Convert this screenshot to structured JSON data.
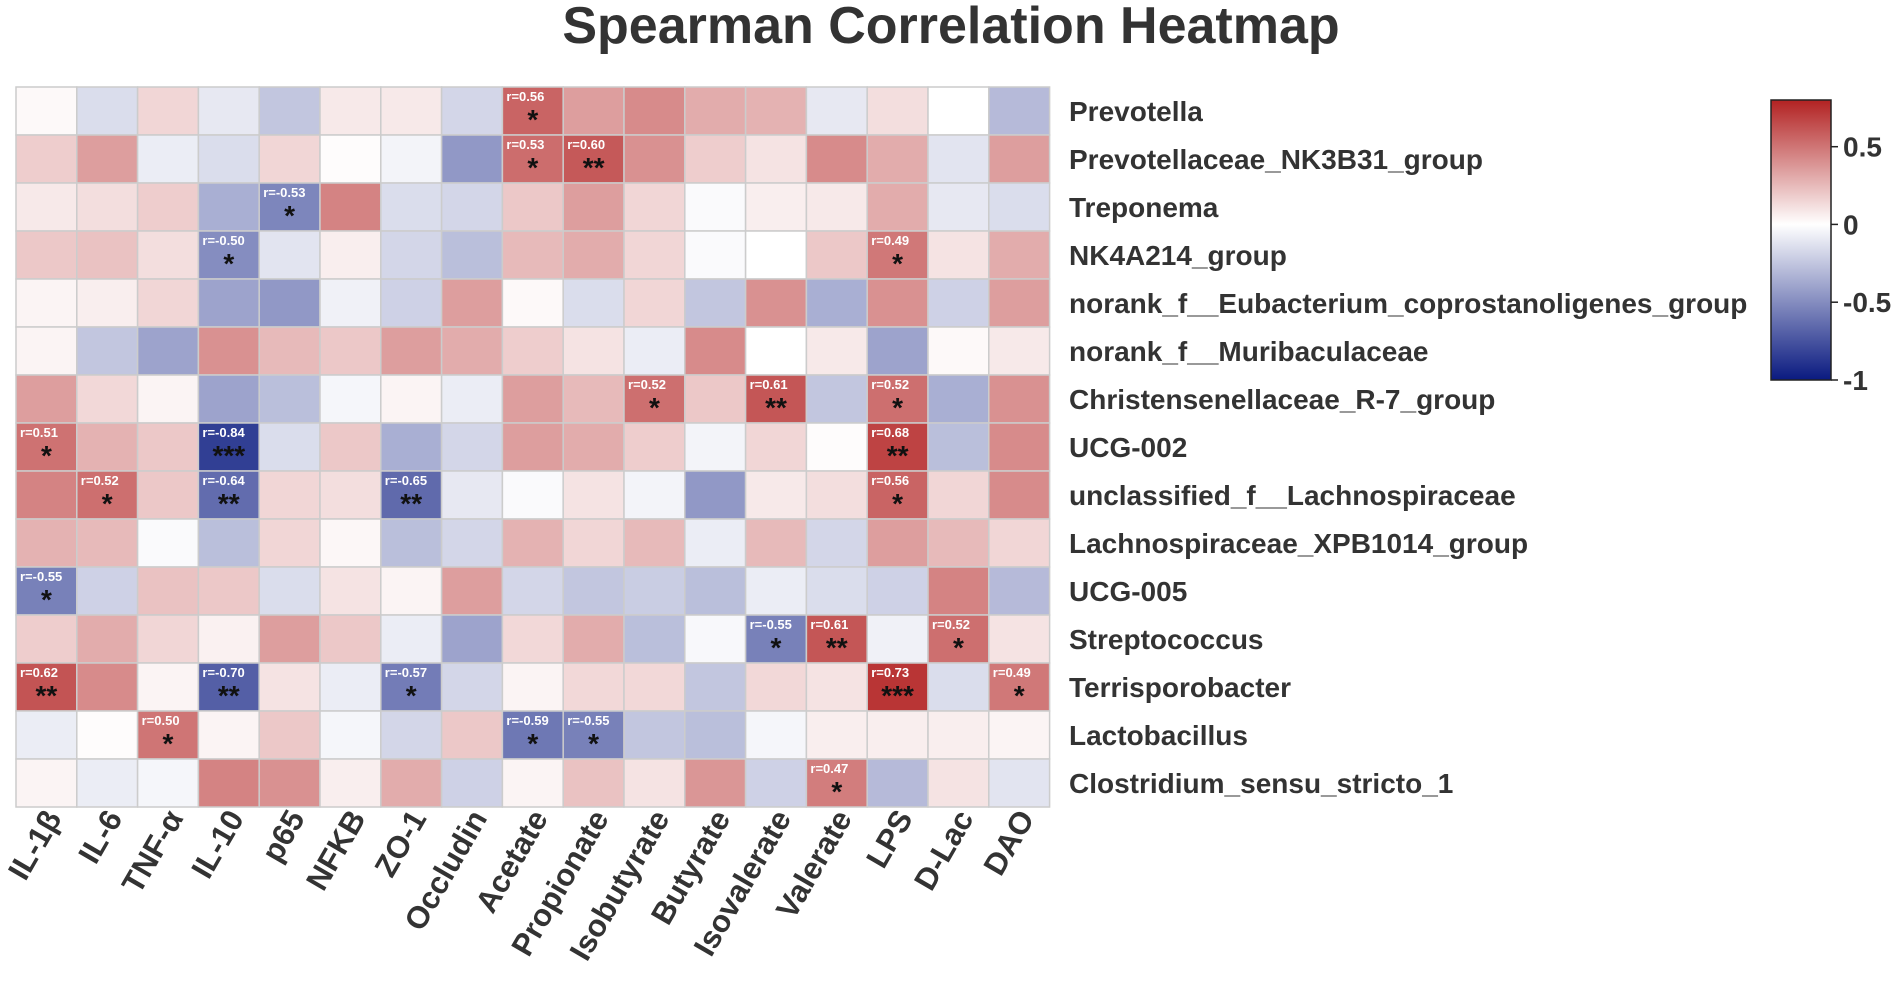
{
  "chart_data": {
    "type": "heatmap",
    "title": "Spearman Correlation Heatmap",
    "columns": [
      "IL-1β",
      "IL-6",
      "TNF-α",
      "IL-10",
      "p65",
      "NFKB",
      "ZO-1",
      "Occludin",
      "Acetate",
      "Propionate",
      "Isobutyrate",
      "Butyrate",
      "Isovalerate",
      "Valerate",
      "LPS",
      "D-Lac",
      "DAO"
    ],
    "rows": [
      "Prevotella",
      "Prevotellaceae_NK3B31_group",
      "Treponema",
      "NK4A214_group",
      "norank_f__Eubacterium_coprostanoligenes_group",
      "norank_f__Muribaculaceae",
      "Christensenellaceae_R-7_group",
      "UCG-002",
      "unclassified_f__Lachnospiraceae",
      "Lachnospiraceae_XPB1014_group",
      "UCG-005",
      "Streptococcus",
      "Terrisporobacter",
      "Lactobacillus",
      "Clostridium_sensu_stricto_1"
    ],
    "values": [
      [
        0.02,
        -0.15,
        0.15,
        -0.1,
        -0.25,
        0.08,
        0.08,
        -0.18,
        0.56,
        0.35,
        0.42,
        0.3,
        0.28,
        -0.1,
        0.12,
        0.0,
        -0.3
      ],
      [
        0.18,
        0.35,
        -0.08,
        -0.15,
        0.15,
        0.01,
        -0.05,
        -0.45,
        0.53,
        0.6,
        0.4,
        0.18,
        0.1,
        0.42,
        0.3,
        -0.12,
        0.35
      ],
      [
        0.08,
        0.12,
        0.18,
        -0.35,
        -0.53,
        0.45,
        -0.15,
        -0.18,
        0.2,
        0.35,
        0.15,
        -0.02,
        0.06,
        0.08,
        0.3,
        -0.1,
        -0.15
      ],
      [
        0.2,
        0.22,
        0.12,
        -0.5,
        -0.12,
        0.06,
        -0.18,
        -0.28,
        0.25,
        0.3,
        0.15,
        -0.02,
        0.0,
        0.2,
        0.49,
        0.1,
        0.3
      ],
      [
        0.04,
        0.06,
        0.15,
        -0.4,
        -0.45,
        -0.06,
        -0.2,
        0.35,
        0.02,
        -0.15,
        0.15,
        -0.25,
        0.4,
        -0.35,
        0.4,
        -0.2,
        0.35
      ],
      [
        0.04,
        -0.25,
        -0.4,
        0.4,
        0.25,
        0.2,
        0.35,
        0.3,
        0.18,
        0.1,
        -0.08,
        0.42,
        0.0,
        0.08,
        -0.4,
        0.02,
        0.08
      ],
      [
        0.35,
        0.14,
        0.04,
        -0.4,
        -0.28,
        -0.04,
        0.04,
        -0.08,
        0.35,
        0.25,
        0.52,
        0.2,
        0.61,
        -0.25,
        0.52,
        -0.35,
        0.4
      ],
      [
        0.51,
        0.28,
        0.2,
        -0.84,
        -0.15,
        0.2,
        -0.35,
        -0.18,
        0.35,
        0.3,
        0.18,
        -0.05,
        0.15,
        0.01,
        0.68,
        -0.28,
        0.42
      ],
      [
        0.45,
        0.52,
        0.2,
        -0.64,
        0.15,
        0.12,
        -0.65,
        -0.1,
        -0.02,
        0.1,
        -0.05,
        -0.45,
        0.08,
        0.12,
        0.56,
        0.15,
        0.42
      ],
      [
        0.28,
        0.25,
        -0.02,
        -0.28,
        0.15,
        0.03,
        -0.28,
        -0.18,
        0.28,
        0.15,
        0.25,
        -0.08,
        0.25,
        -0.18,
        0.35,
        0.25,
        0.15
      ],
      [
        -0.55,
        -0.2,
        0.22,
        0.2,
        -0.15,
        0.1,
        0.04,
        0.35,
        -0.18,
        -0.25,
        -0.22,
        -0.28,
        -0.08,
        -0.15,
        -0.2,
        0.45,
        -0.3
      ],
      [
        0.18,
        0.3,
        0.15,
        0.05,
        0.35,
        0.2,
        -0.08,
        -0.4,
        0.14,
        0.3,
        -0.28,
        -0.03,
        -0.55,
        0.61,
        -0.06,
        0.52,
        0.1
      ],
      [
        0.62,
        0.42,
        0.04,
        -0.7,
        0.1,
        -0.08,
        -0.57,
        -0.18,
        0.04,
        0.14,
        0.14,
        -0.25,
        0.14,
        0.1,
        0.73,
        -0.15,
        0.49
      ],
      [
        -0.08,
        0.01,
        0.5,
        0.04,
        0.2,
        -0.04,
        -0.18,
        0.2,
        -0.59,
        -0.55,
        -0.25,
        -0.28,
        -0.04,
        0.06,
        0.06,
        0.06,
        0.04
      ],
      [
        0.04,
        -0.08,
        -0.04,
        0.45,
        0.4,
        0.06,
        0.3,
        -0.2,
        0.04,
        0.22,
        0.1,
        0.38,
        -0.2,
        0.47,
        -0.3,
        0.1,
        -0.12
      ]
    ],
    "annotations": [
      {
        "row": 0,
        "col": 8,
        "label": "r=0.56",
        "stars": "*"
      },
      {
        "row": 1,
        "col": 8,
        "label": "r=0.53",
        "stars": "*"
      },
      {
        "row": 1,
        "col": 9,
        "label": "r=0.60",
        "stars": "**"
      },
      {
        "row": 2,
        "col": 4,
        "label": "r=-0.53",
        "stars": "*"
      },
      {
        "row": 3,
        "col": 3,
        "label": "r=-0.50",
        "stars": "*"
      },
      {
        "row": 3,
        "col": 14,
        "label": "r=0.49",
        "stars": "*"
      },
      {
        "row": 6,
        "col": 10,
        "label": "r=0.52",
        "stars": "*"
      },
      {
        "row": 6,
        "col": 12,
        "label": "r=0.61",
        "stars": "**"
      },
      {
        "row": 6,
        "col": 14,
        "label": "r=0.52",
        "stars": "*"
      },
      {
        "row": 7,
        "col": 0,
        "label": "r=0.51",
        "stars": "*"
      },
      {
        "row": 7,
        "col": 3,
        "label": "r=-0.84",
        "stars": "***"
      },
      {
        "row": 7,
        "col": 14,
        "label": "r=0.68",
        "stars": "**"
      },
      {
        "row": 8,
        "col": 1,
        "label": "r=0.52",
        "stars": "*"
      },
      {
        "row": 8,
        "col": 3,
        "label": "r=-0.64",
        "stars": "**"
      },
      {
        "row": 8,
        "col": 6,
        "label": "r=-0.65",
        "stars": "**"
      },
      {
        "row": 8,
        "col": 14,
        "label": "r=0.56",
        "stars": "*"
      },
      {
        "row": 10,
        "col": 0,
        "label": "r=-0.55",
        "stars": "*"
      },
      {
        "row": 11,
        "col": 12,
        "label": "r=-0.55",
        "stars": "*"
      },
      {
        "row": 11,
        "col": 13,
        "label": "r=0.61",
        "stars": "**"
      },
      {
        "row": 11,
        "col": 15,
        "label": "r=0.52",
        "stars": "*"
      },
      {
        "row": 12,
        "col": 0,
        "label": "r=0.62",
        "stars": "**"
      },
      {
        "row": 12,
        "col": 3,
        "label": "r=-0.70",
        "stars": "**"
      },
      {
        "row": 12,
        "col": 6,
        "label": "r=-0.57",
        "stars": "*"
      },
      {
        "row": 12,
        "col": 14,
        "label": "r=0.73",
        "stars": "***"
      },
      {
        "row": 12,
        "col": 16,
        "label": "r=0.49",
        "stars": "*"
      },
      {
        "row": 13,
        "col": 2,
        "label": "r=0.50",
        "stars": "*"
      },
      {
        "row": 13,
        "col": 8,
        "label": "r=-0.59",
        "stars": "*"
      },
      {
        "row": 13,
        "col": 9,
        "label": "r=-0.55",
        "stars": "*"
      },
      {
        "row": 14,
        "col": 13,
        "label": "r=0.47",
        "stars": "*"
      }
    ],
    "colorbar": {
      "range": [
        -1,
        0.8
      ],
      "ticks": [
        0.5,
        0,
        -0.5,
        -1
      ],
      "tick_labels": [
        "0.5",
        "0",
        "-0.5",
        "-1"
      ],
      "colors": {
        "low": "#0a1a80",
        "mid": "#ffffff",
        "high": "#b22222"
      }
    },
    "legend_position": "right"
  },
  "colors": {
    "grid_line": "#cccccc",
    "text": "#333333",
    "label_text": "#ffffff",
    "star_text": "#111111"
  }
}
